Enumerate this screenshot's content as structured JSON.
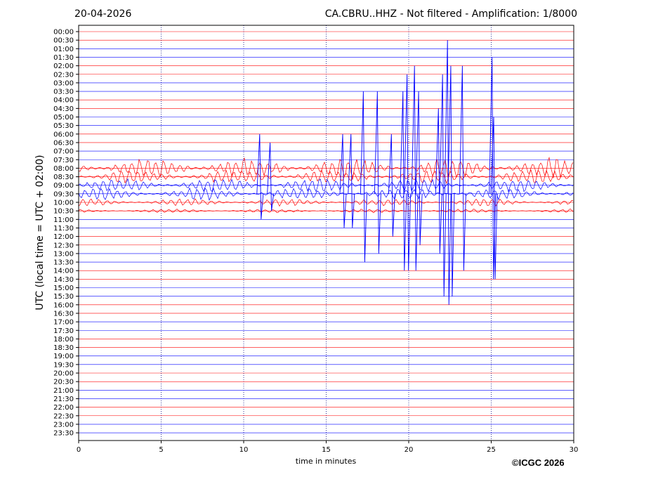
{
  "header": {
    "date": "20-04-2026",
    "title": "CA.CBRU..HHZ - Not filtered - Amplification: 1/8000"
  },
  "footer": {
    "copyright": "©ICGC 2026"
  },
  "colors": {
    "trace_a": "#ff0000",
    "trace_b": "#0000ff",
    "grid": "#000080",
    "frame": "#000000"
  },
  "chart_data": {
    "type": "line",
    "title": "CA.CBRU..HHZ - Not filtered - Amplification: 1/8000",
    "xlabel": "time in minutes",
    "ylabel": "UTC (local time = UTC + 02:00)",
    "xlim": [
      0,
      30
    ],
    "x_ticks": [
      0,
      5,
      10,
      15,
      20,
      25,
      30
    ],
    "grid": "x dotted",
    "y_ticks": [
      "00:00",
      "00:30",
      "01:00",
      "01:30",
      "02:00",
      "02:30",
      "03:00",
      "03:30",
      "04:00",
      "04:30",
      "05:00",
      "05:30",
      "06:00",
      "06:30",
      "07:00",
      "07:30",
      "08:00",
      "08:30",
      "09:00",
      "09:30",
      "10:00",
      "10:30",
      "11:00",
      "11:30",
      "12:00",
      "12:30",
      "13:00",
      "13:30",
      "14:00",
      "14:30",
      "15:00",
      "15:30",
      "16:00",
      "16:30",
      "17:00",
      "17:30",
      "18:00",
      "18:30",
      "19:00",
      "19:30",
      "20:00",
      "20:30",
      "21:00",
      "21:30",
      "22:00",
      "22:30",
      "23:00",
      "23:30"
    ],
    "trace_colors_cycle": [
      "#ff0000",
      "#ff0000",
      "#0000ff",
      "#0000ff"
    ],
    "active_traces": [
      {
        "start": "08:00",
        "activity": 0.85,
        "note_style": "dense"
      },
      {
        "start": "08:30",
        "activity": 0.6
      },
      {
        "start": "09:00",
        "activity": 0.55
      },
      {
        "start": "09:30",
        "activity": 0.5
      },
      {
        "start": "10:00",
        "activity": 0.3
      },
      {
        "start": "10:30",
        "activity": 0.15
      }
    ],
    "large_spikes": [
      {
        "trace": "09:30",
        "x": 10.97,
        "up_to": "06:00",
        "down_to": "11:00"
      },
      {
        "trace": "09:30",
        "x": 11.6,
        "up_to": "06:30",
        "down_to": "10:30"
      },
      {
        "trace": "09:30",
        "x": 16.0,
        "up_to": "06:00",
        "down_to": "11:30"
      },
      {
        "trace": "09:30",
        "x": 16.5,
        "up_to": "06:00",
        "down_to": "11:30"
      },
      {
        "trace": "09:30",
        "x": 17.25,
        "up_to": "03:30",
        "down_to": "13:30"
      },
      {
        "trace": "09:30",
        "x": 18.1,
        "up_to": "03:30",
        "down_to": "13:00"
      },
      {
        "trace": "09:30",
        "x": 18.95,
        "up_to": "06:00",
        "down_to": "12:00"
      },
      {
        "trace": "09:30",
        "x": 19.65,
        "up_to": "03:30",
        "down_to": "14:00"
      },
      {
        "trace": "09:30",
        "x": 19.9,
        "up_to": "02:30",
        "down_to": "14:00"
      },
      {
        "trace": "09:30",
        "x": 20.35,
        "up_to": "02:00",
        "down_to": "14:00"
      },
      {
        "trace": "09:30",
        "x": 20.6,
        "up_to": "03:30",
        "down_to": "12:30"
      },
      {
        "trace": "09:30",
        "x": 21.8,
        "up_to": "04:30",
        "down_to": "13:00"
      },
      {
        "trace": "09:30",
        "x": 22.05,
        "up_to": "02:30",
        "down_to": "15:30"
      },
      {
        "trace": "09:30",
        "x": 22.35,
        "up_to": "00:30",
        "down_to": "16:00"
      },
      {
        "trace": "09:30",
        "x": 22.55,
        "up_to": "02:00",
        "down_to": "15:30"
      },
      {
        "trace": "09:30",
        "x": 23.25,
        "up_to": "02:00",
        "down_to": "14:00"
      },
      {
        "trace": "09:30",
        "x": 25.05,
        "up_to": "01:30",
        "down_to": "14:30"
      },
      {
        "trace": "09:30",
        "x": 25.15,
        "up_to": "05:00",
        "down_to": "14:30"
      }
    ]
  }
}
